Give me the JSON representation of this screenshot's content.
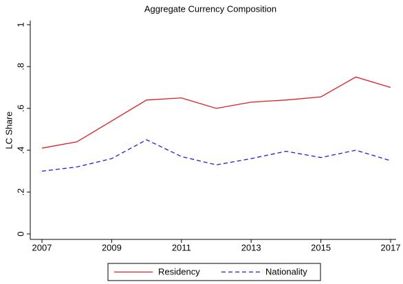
{
  "chart_data": {
    "type": "line",
    "title": "Aggregate Currency Composition",
    "y_label": "LC Share",
    "x": [
      2007,
      2008,
      2009,
      2010,
      2011,
      2012,
      2013,
      2014,
      2015,
      2016,
      2017
    ],
    "series": [
      {
        "name": "Residency",
        "color": "#e8191f",
        "dash": "solid",
        "values": [
          0.41,
          0.44,
          0.54,
          0.64,
          0.65,
          0.6,
          0.63,
          0.64,
          0.655,
          0.75,
          0.7
        ]
      },
      {
        "name": "Nationality",
        "color": "#1a1aee",
        "dash": "dashed",
        "values": [
          0.3,
          0.32,
          0.36,
          0.45,
          0.37,
          0.33,
          0.36,
          0.395,
          0.365,
          0.4,
          0.35
        ]
      }
    ],
    "xlim": [
      2007,
      2017
    ],
    "xticks": [
      2007,
      2009,
      2011,
      2013,
      2015,
      2017
    ],
    "ylim": [
      0,
      1
    ],
    "yticks": [
      {
        "value": 0,
        "label": "0"
      },
      {
        "value": 0.2,
        "label": ".2"
      },
      {
        "value": 0.4,
        "label": ".4"
      },
      {
        "value": 0.6,
        "label": ".6"
      },
      {
        "value": 0.8,
        "label": ".8"
      },
      {
        "value": 1,
        "label": "1"
      }
    ],
    "legend": "bottom"
  }
}
